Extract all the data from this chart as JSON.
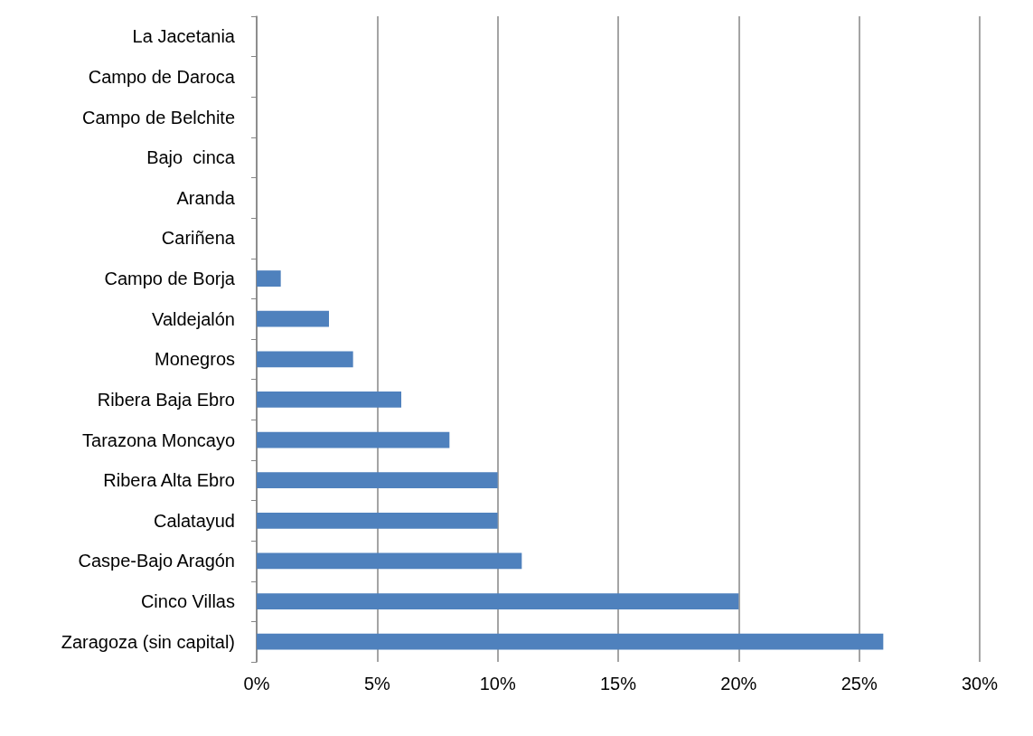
{
  "chart_data": {
    "type": "bar",
    "orientation": "horizontal",
    "categories": [
      "La Jacetania",
      "Campo de Daroca",
      "Campo de Belchite",
      "Bajo  cinca",
      "Aranda",
      "Cariñena",
      "Campo de Borja",
      "Valdejalón",
      "Monegros",
      "Ribera Baja Ebro",
      "Tarazona Moncayo",
      "Ribera Alta Ebro",
      "Calatayud",
      "Caspe-Bajo Aragón",
      "Cinco Villas",
      "Zaragoza (sin capital)"
    ],
    "values": [
      0,
      0,
      0,
      0,
      0,
      0,
      1,
      3,
      4,
      6,
      8,
      10,
      10,
      11,
      20,
      26
    ],
    "color": "#4f81bd",
    "xlim": [
      0,
      30
    ],
    "xticks": [
      {
        "value": 0,
        "label": "0%"
      },
      {
        "value": 5,
        "label": "5%"
      },
      {
        "value": 10,
        "label": "10%"
      },
      {
        "value": 15,
        "label": "15%"
      },
      {
        "value": 20,
        "label": "20%"
      },
      {
        "value": 25,
        "label": "25%"
      },
      {
        "value": 30,
        "label": "30%"
      }
    ],
    "grid": "x"
  }
}
